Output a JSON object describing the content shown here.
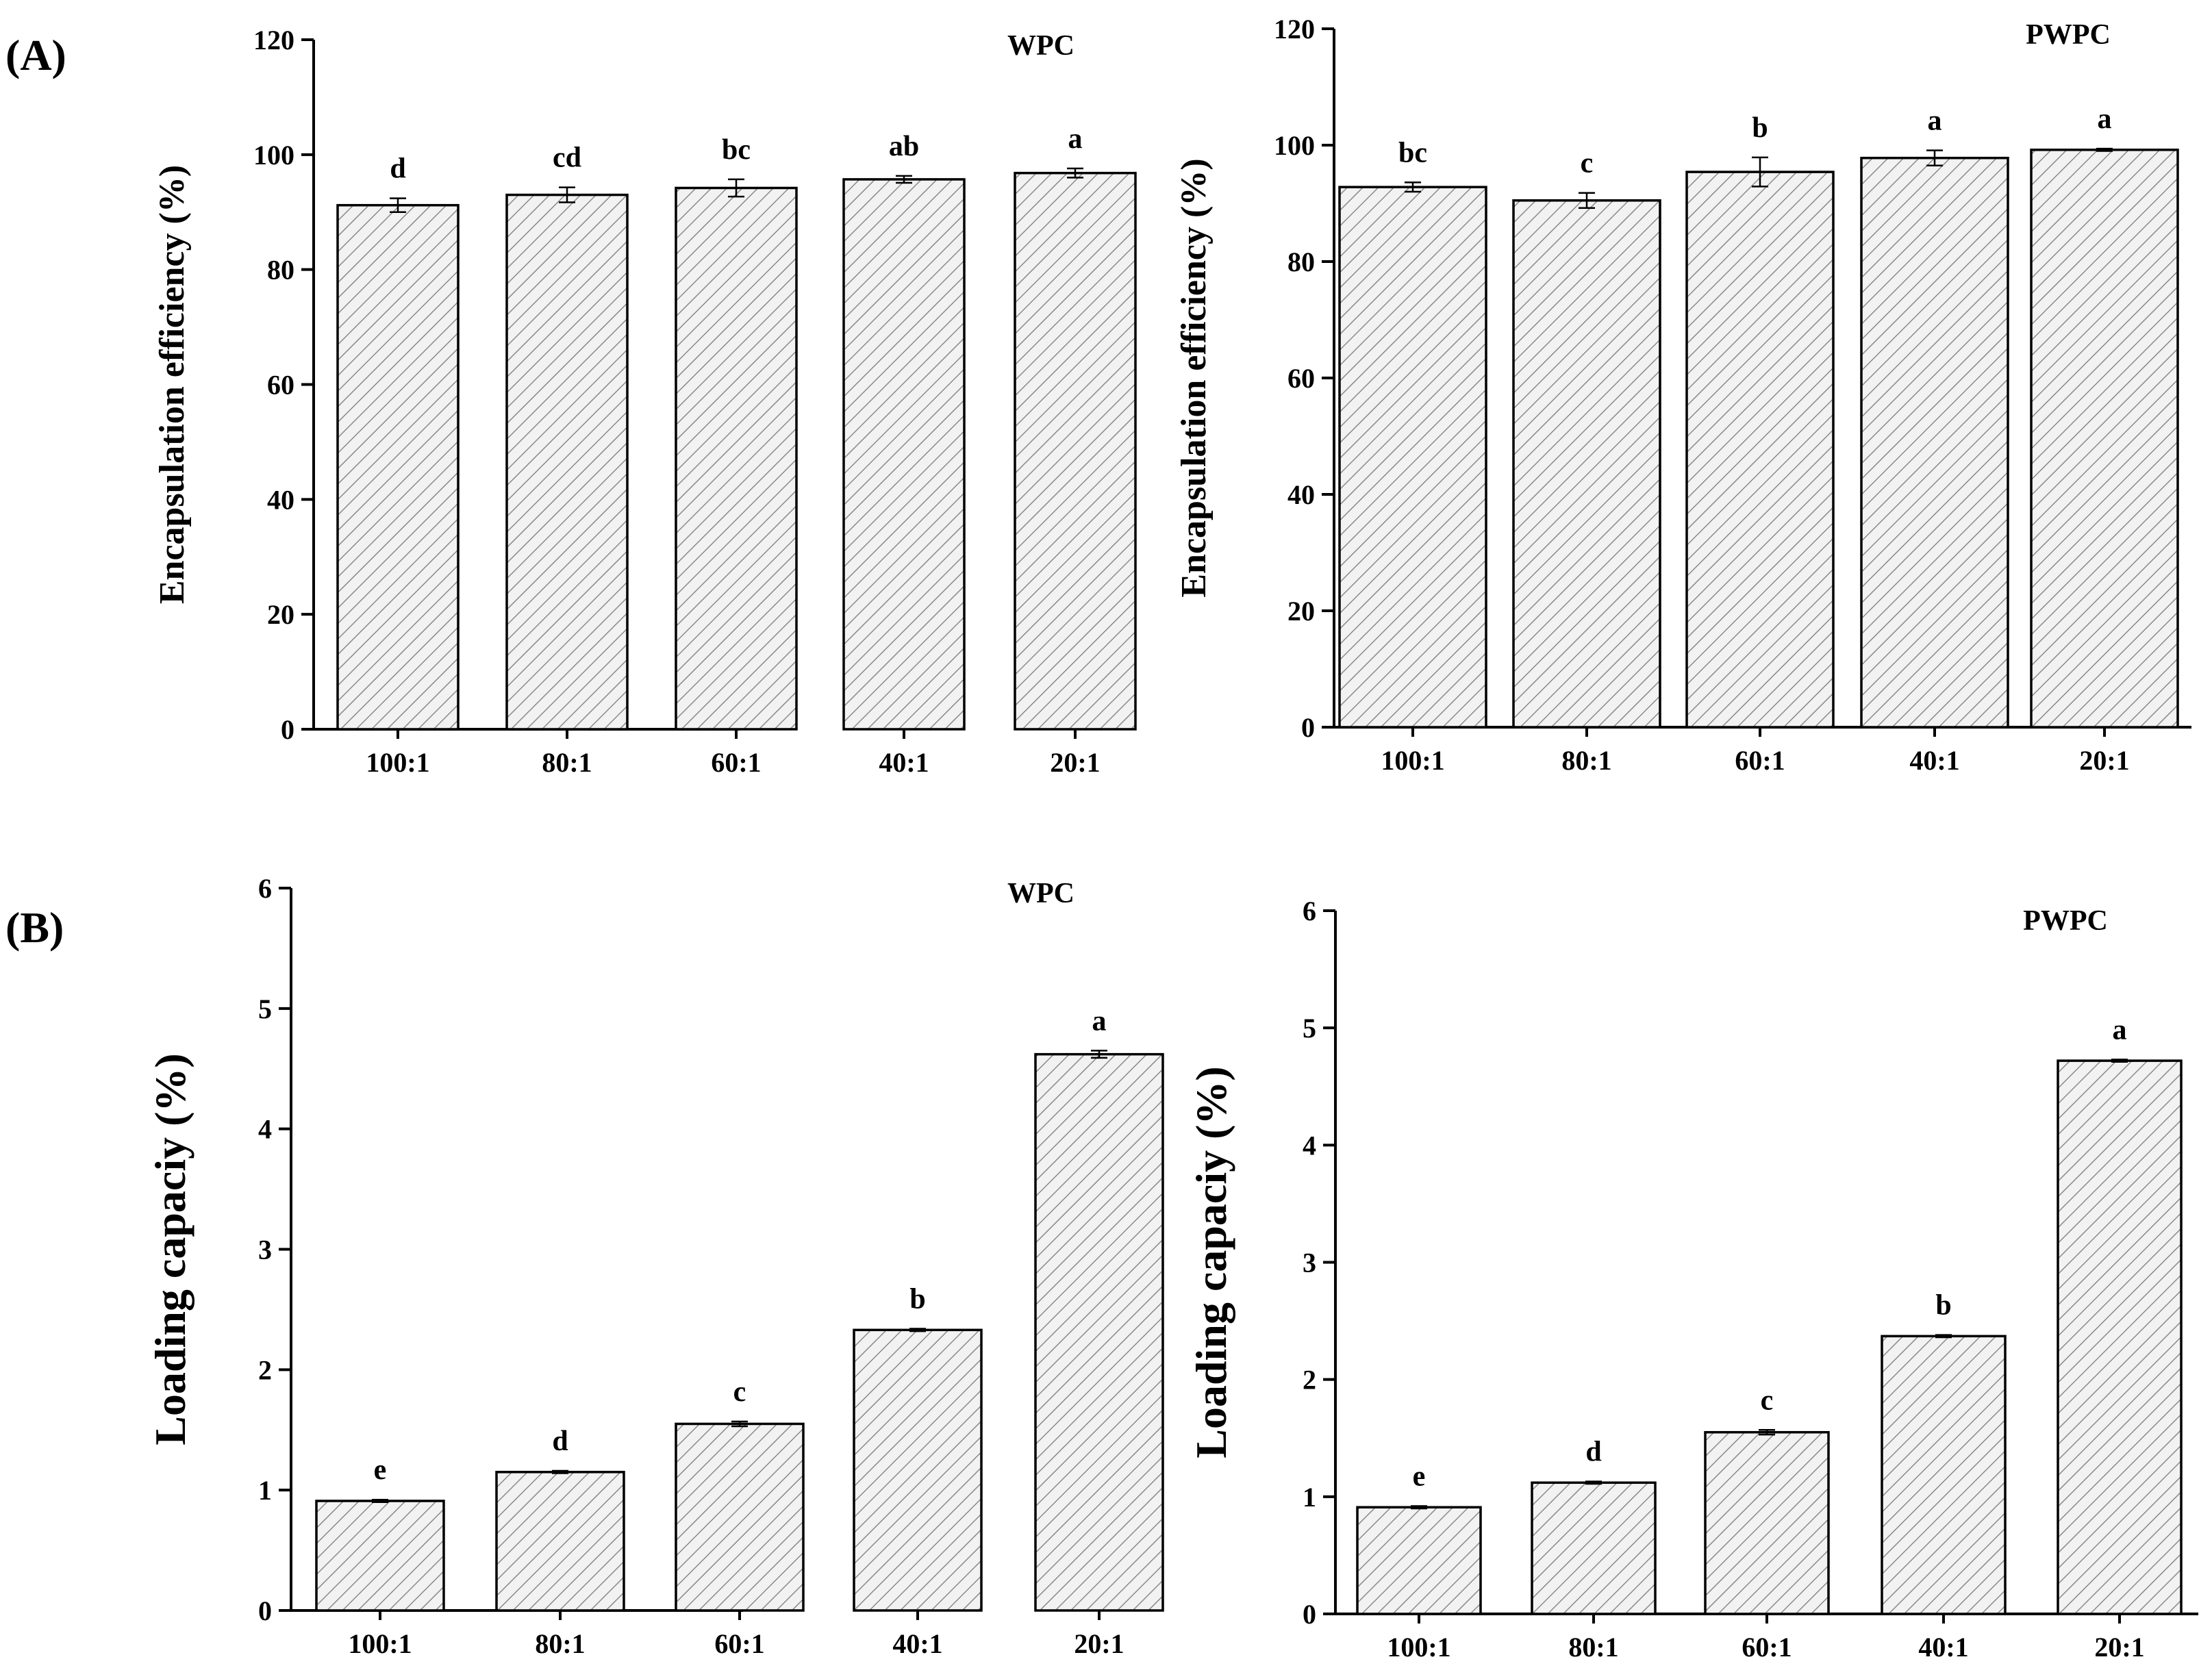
{
  "panels": {
    "A": "(A)",
    "B": "(B)"
  },
  "colors": {
    "bar_fill": "#f2f2f2",
    "hatch": "#8a8a8a",
    "axis": "#000000"
  },
  "chart_data": [
    {
      "id": "A-WPC",
      "type": "bar",
      "name": "WPC",
      "categories": [
        "100:1",
        "80:1",
        "60:1",
        "40:1",
        "20:1"
      ],
      "values": [
        91.2,
        93.0,
        94.2,
        95.7,
        96.8
      ],
      "errors": [
        1.2,
        1.3,
        1.5,
        0.6,
        0.8
      ],
      "letters": [
        "d",
        "cd",
        "bc",
        "ab",
        "a"
      ],
      "ylabel": "Encapsulation efficiency (%)",
      "ylim": [
        0,
        120
      ],
      "yticks": [
        0,
        20,
        40,
        60,
        80,
        100,
        120
      ]
    },
    {
      "id": "A-PWPC",
      "type": "bar",
      "name": "PWPC",
      "categories": [
        "100:1",
        "80:1",
        "60:1",
        "40:1",
        "20:1"
      ],
      "values": [
        92.8,
        90.5,
        95.4,
        97.8,
        99.2
      ],
      "errors": [
        0.8,
        1.3,
        2.5,
        1.3,
        0.2
      ],
      "letters": [
        "bc",
        "c",
        "b",
        "a",
        "a"
      ],
      "ylabel": "Encapsulation efficiency (%)",
      "ylim": [
        0,
        120
      ],
      "yticks": [
        0,
        20,
        40,
        60,
        80,
        100,
        120
      ]
    },
    {
      "id": "B-WPC",
      "type": "bar",
      "name": "WPC",
      "categories": [
        "100:1",
        "80:1",
        "60:1",
        "40:1",
        "20:1"
      ],
      "values": [
        0.91,
        1.15,
        1.55,
        2.33,
        4.62
      ],
      "errors": [
        0.01,
        0.01,
        0.02,
        0.01,
        0.03
      ],
      "letters": [
        "e",
        "d",
        "c",
        "b",
        "a"
      ],
      "ylabel": "Loading capaciy (%)",
      "ylim": [
        0,
        6
      ],
      "yticks": [
        0,
        1,
        2,
        3,
        4,
        5,
        6
      ]
    },
    {
      "id": "B-PWPC",
      "type": "bar",
      "name": "PWPC",
      "categories": [
        "100:1",
        "80:1",
        "60:1",
        "40:1",
        "20:1"
      ],
      "values": [
        0.91,
        1.12,
        1.55,
        2.37,
        4.72
      ],
      "errors": [
        0.01,
        0.01,
        0.02,
        0.01,
        0.01
      ],
      "letters": [
        "e",
        "d",
        "c",
        "b",
        "a"
      ],
      "ylabel": "Loading capaciy (%)",
      "ylim": [
        0,
        6
      ],
      "yticks": [
        0,
        1,
        2,
        3,
        4,
        5,
        6
      ]
    }
  ]
}
